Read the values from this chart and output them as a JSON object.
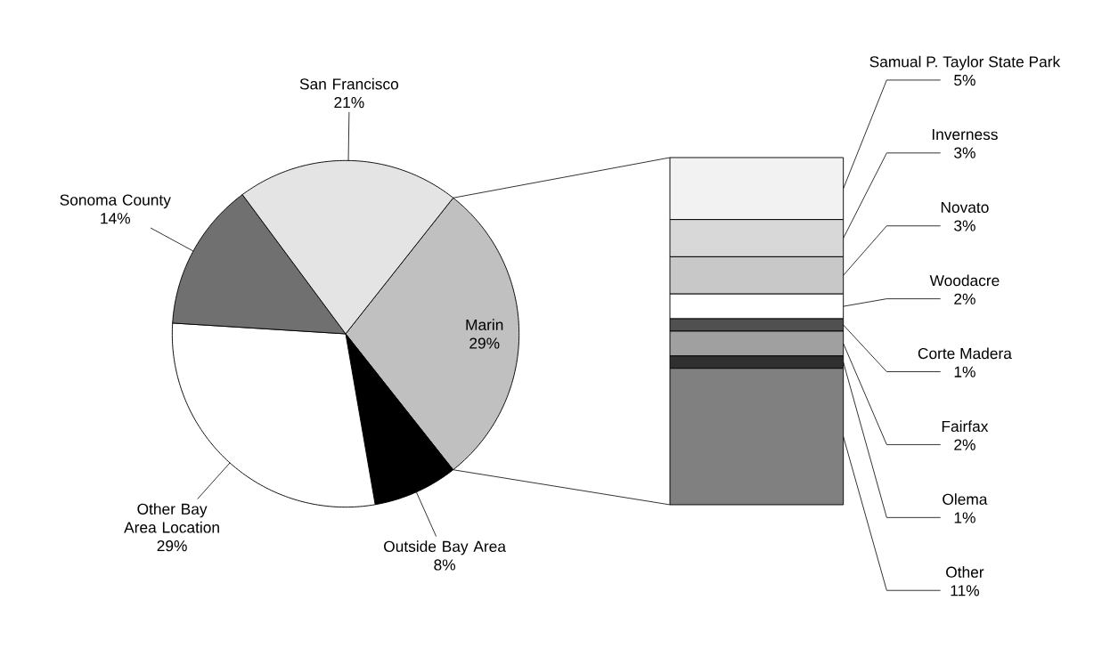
{
  "chart_data": [
    {
      "type": "pie",
      "categories": [
        "Marin",
        "Outside Bay Area",
        "Other Bay Area Location",
        "Sonoma County",
        "San Francisco"
      ],
      "values": [
        29,
        8,
        29,
        14,
        21
      ],
      "value_labels": [
        "29%",
        "8%",
        "29%",
        "14%",
        "21%"
      ],
      "colors": [
        "#c0c0c0",
        "#000000",
        "#ffffff",
        "#707070",
        "#e4e4e4"
      ]
    },
    {
      "type": "bar",
      "stacked": true,
      "categories": [
        null
      ],
      "series": [
        {
          "name": "Other",
          "color": "#808080",
          "values": [
            11
          ],
          "value_labels": [
            "11%"
          ]
        },
        {
          "name": "Olema",
          "color": "#303030",
          "values": [
            1
          ],
          "value_labels": [
            "1%"
          ]
        },
        {
          "name": "Fairfax",
          "color": "#a0a0a0",
          "values": [
            2
          ],
          "value_labels": [
            "2%"
          ]
        },
        {
          "name": "Corte Madera",
          "color": "#505050",
          "values": [
            1
          ],
          "value_labels": [
            "1%"
          ]
        },
        {
          "name": "Woodacre",
          "color": "#ffffff",
          "values": [
            2
          ],
          "value_labels": [
            "2%"
          ]
        },
        {
          "name": "Novato",
          "color": "#c8c8c8",
          "values": [
            3
          ],
          "value_labels": [
            "3%"
          ]
        },
        {
          "name": "Inverness",
          "color": "#d8d8d8",
          "values": [
            3
          ],
          "value_labels": [
            "3%"
          ]
        },
        {
          "name": "Samual P. Taylor State Park",
          "color": "#f2f2f2",
          "values": [
            5
          ],
          "value_labels": [
            "5%"
          ]
        }
      ]
    }
  ]
}
